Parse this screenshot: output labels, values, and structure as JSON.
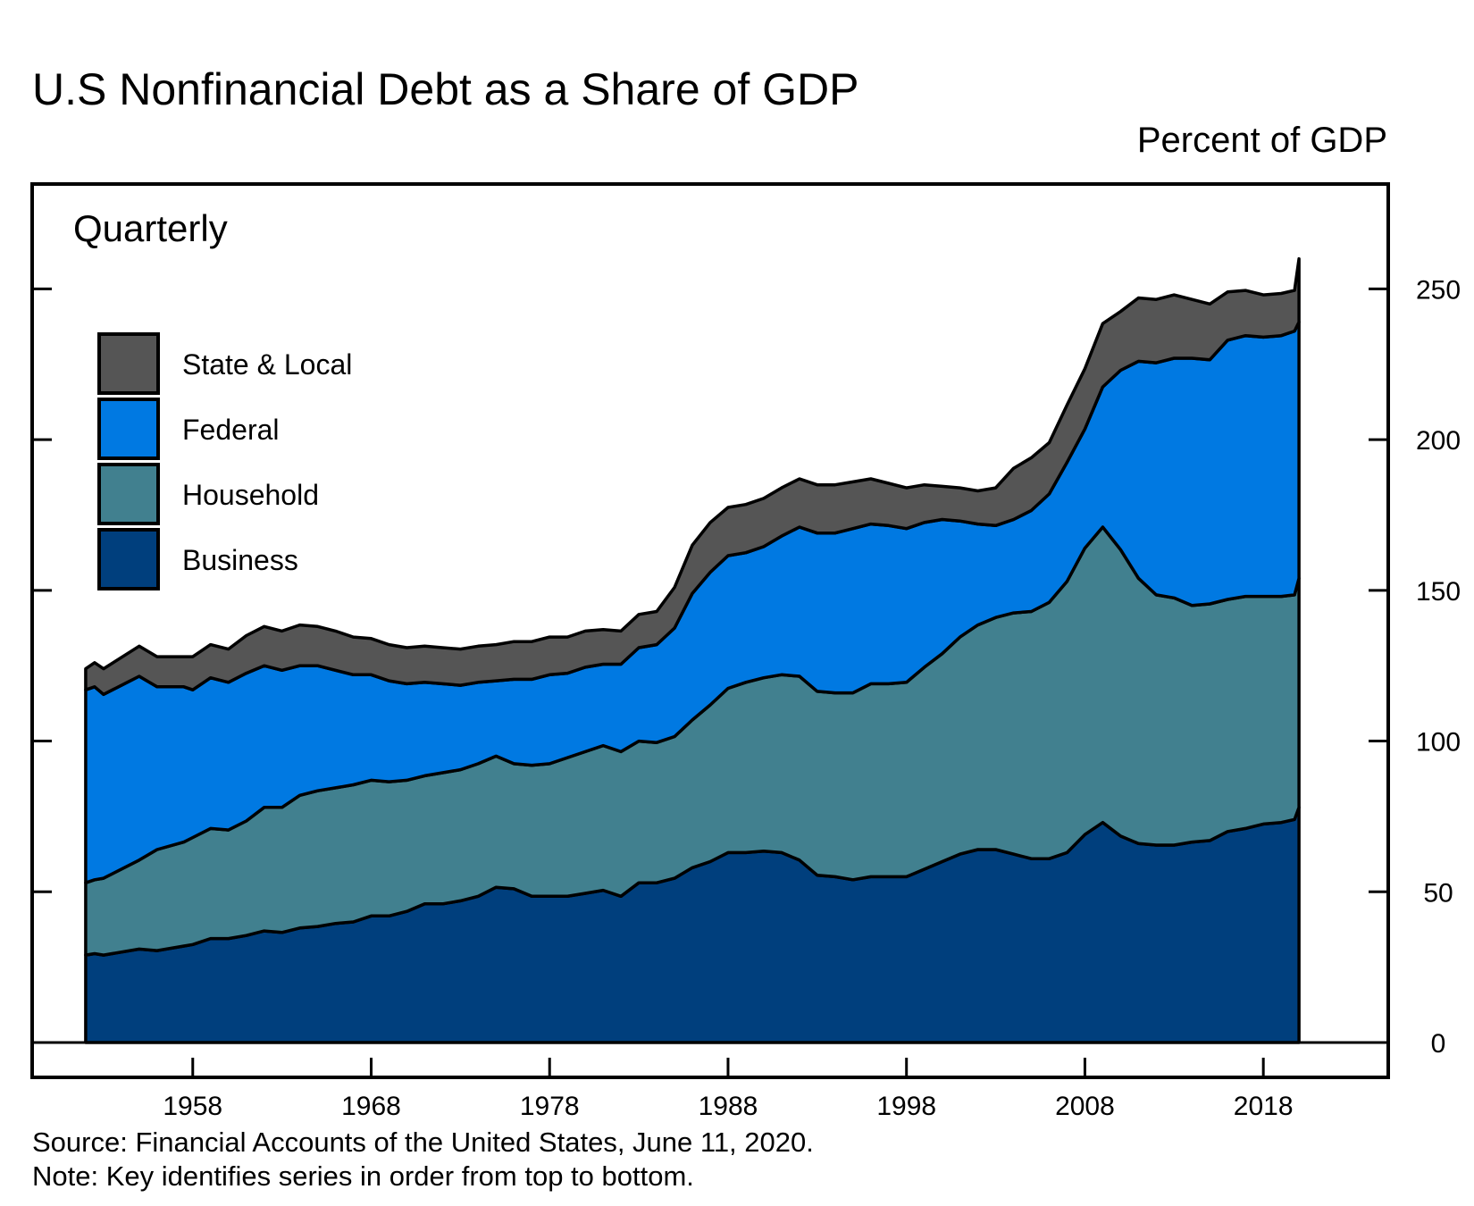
{
  "chart_data": {
    "type": "area",
    "stacked": true,
    "title": "U.S Nonfinancial Debt as a Share of GDP",
    "units_label": "Percent of GDP",
    "frequency_label": "Quarterly",
    "xlim": [
      1949,
      2025
    ],
    "ylim": [
      0,
      280
    ],
    "x_ticks": [
      1958,
      1968,
      1978,
      1988,
      1998,
      2008,
      2018
    ],
    "y_ticks": [
      0,
      50,
      100,
      150,
      200,
      250
    ],
    "y_axis_side": "right",
    "grid": false,
    "legend_position": "upper-left",
    "legend_order": [
      "State & Local",
      "Federal",
      "Household",
      "Business"
    ],
    "x": [
      1952,
      1952.5,
      1953,
      1955,
      1956,
      1957.5,
      1958,
      1959,
      1960,
      1961,
      1962,
      1963,
      1964,
      1965,
      1966,
      1967,
      1968,
      1969,
      1970,
      1971,
      1972,
      1973,
      1974,
      1975,
      1976,
      1977,
      1978,
      1979,
      1980,
      1981,
      1982,
      1983,
      1984,
      1985,
      1986,
      1987,
      1988,
      1989,
      1990,
      1991,
      1992,
      1993,
      1994,
      1995,
      1996,
      1997,
      1998,
      1999,
      2000,
      2001,
      2002,
      2003,
      2004,
      2005,
      2006,
      2007,
      2008,
      2009,
      2010,
      2011,
      2012,
      2013,
      2014,
      2015,
      2016,
      2017,
      2018,
      2019,
      2019.75,
      2020
    ],
    "series": [
      {
        "name": "Business",
        "color": "#003f7d",
        "values": [
          29,
          29.5,
          29,
          31,
          30.5,
          32,
          32.5,
          34.5,
          34.5,
          35.5,
          37,
          36.5,
          38,
          38.5,
          39.5,
          40,
          42,
          42,
          43.5,
          46,
          46,
          47,
          48.5,
          51.5,
          51,
          48.5,
          48.5,
          48.5,
          49.5,
          50.5,
          48.5,
          53,
          53,
          54.5,
          58,
          60,
          63,
          63,
          63.5,
          63,
          60.5,
          55.5,
          55,
          54,
          55,
          55,
          55,
          57.5,
          60,
          62.5,
          64,
          64,
          62.5,
          61,
          61,
          63,
          69,
          73,
          68.5,
          66,
          65.5,
          65.5,
          66.5,
          67,
          70,
          71,
          72.5,
          73,
          74,
          78
        ]
      },
      {
        "name": "Household",
        "color": "#41808f",
        "values": [
          24,
          24.5,
          25.5,
          29.5,
          33.5,
          34.5,
          35.5,
          36.5,
          36,
          38,
          41,
          41.5,
          44,
          45,
          45,
          45.5,
          45,
          44.5,
          43.5,
          42.5,
          43.5,
          43.5,
          44,
          43.5,
          41.5,
          43.5,
          44,
          46,
          47,
          48,
          48,
          47,
          46.5,
          47,
          49,
          52,
          54.5,
          56.5,
          57.5,
          59,
          61,
          61,
          61,
          62,
          64,
          64,
          64.5,
          67,
          69,
          72,
          74.5,
          77,
          80,
          82,
          85,
          90,
          95,
          98,
          95,
          88,
          83,
          82,
          78.5,
          78.5,
          77,
          77,
          75.5,
          75,
          74.5,
          76
        ]
      },
      {
        "name": "Federal",
        "color": "#0079e2",
        "values": [
          64,
          64,
          61,
          61,
          54,
          51.5,
          49,
          50,
          49,
          49,
          47,
          45.5,
          43,
          41.5,
          39,
          36.5,
          35,
          33.5,
          32,
          31,
          29.5,
          28,
          27,
          25,
          28,
          28.5,
          29.5,
          28,
          28,
          27,
          29,
          31,
          32.5,
          36,
          42,
          44,
          44,
          43,
          43.5,
          46,
          49.5,
          52.5,
          53,
          54.5,
          53,
          52.5,
          51,
          48,
          44.5,
          38.5,
          33.5,
          30.5,
          31,
          33.5,
          36,
          39.5,
          39.5,
          46.5,
          59.5,
          72,
          77,
          79.5,
          82,
          81,
          86,
          86.5,
          86,
          86.5,
          87.5,
          85
        ]
      },
      {
        "name": "State & Local",
        "color": "#555555",
        "values": [
          7,
          8,
          8.5,
          10,
          10,
          10,
          11,
          11,
          11,
          12.5,
          13,
          13,
          13.5,
          13,
          13,
          12.5,
          12,
          12,
          12,
          12,
          12,
          12,
          12,
          12,
          12.5,
          12.5,
          12.5,
          12,
          12,
          11.5,
          11,
          11,
          11,
          13.5,
          16,
          16.5,
          16,
          16,
          16,
          16,
          16,
          16,
          16,
          15.5,
          15,
          14,
          13.5,
          12.5,
          11,
          11,
          11,
          12.5,
          17,
          17.5,
          17,
          19,
          20,
          21,
          19.5,
          21,
          21,
          21,
          19.5,
          18.5,
          16,
          15,
          14,
          14,
          13.5,
          21
        ]
      }
    ]
  },
  "source_note": "Source: Financial Accounts of the United States, June 11, 2020.",
  "key_note": "Note: Key identifies series in order from top to bottom."
}
